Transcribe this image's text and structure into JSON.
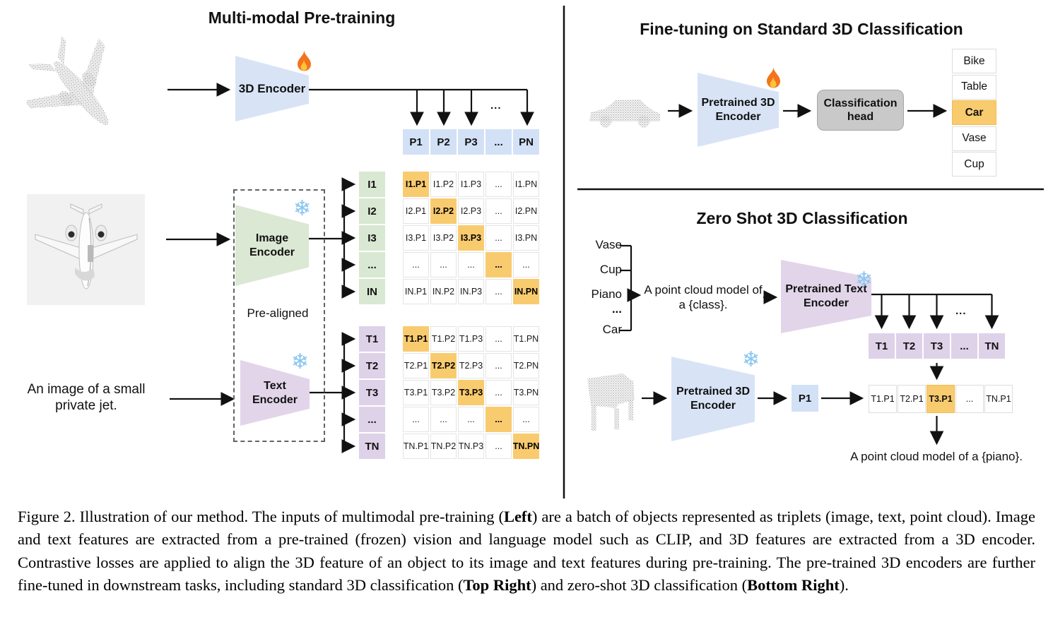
{
  "pretrain": {
    "title": "Multi-modal Pre-training",
    "pre_aligned": "Pre-aligned",
    "encoder_3d": "3D Encoder",
    "image_encoder": [
      "Image",
      "Encoder"
    ],
    "text_encoder": [
      "Text",
      "Encoder"
    ],
    "text_input_line1": "An image of a small",
    "text_input_line2": "private jet.",
    "ellipsis": "...",
    "p_row": [
      "P1",
      "P2",
      "P3",
      "...",
      "PN"
    ],
    "i_col": [
      "I1",
      "I2",
      "I3",
      "...",
      "IN"
    ],
    "t_col": [
      "T1",
      "T2",
      "T3",
      "...",
      "TN"
    ],
    "i_matrix": [
      [
        "I1.P1",
        "I1.P2",
        "I1.P3",
        "...",
        "I1.PN"
      ],
      [
        "I2.P1",
        "I2.P2",
        "I2.P3",
        "...",
        "I2.PN"
      ],
      [
        "I3.P1",
        "I3.P2",
        "I3.P3",
        "...",
        "I3.PN"
      ],
      [
        "...",
        "...",
        "...",
        "...",
        "..."
      ],
      [
        "IN.P1",
        "IN.P2",
        "IN.P3",
        "...",
        "IN.PN"
      ]
    ],
    "t_matrix": [
      [
        "T1.P1",
        "T1.P2",
        "T1.P3",
        "...",
        "T1.PN"
      ],
      [
        "T2.P1",
        "T2.P2",
        "T2.P3",
        "...",
        "T2.PN"
      ],
      [
        "T3.P1",
        "T3.P2",
        "T3.P3",
        "...",
        "T3.PN"
      ],
      [
        "...",
        "...",
        "...",
        "...",
        "..."
      ],
      [
        "TN.P1",
        "TN.P2",
        "TN.P3",
        "...",
        "TN.PN"
      ]
    ]
  },
  "finetune": {
    "title": "Fine-tuning on Standard 3D Classification",
    "encoder": [
      "Pretrained 3D",
      "Encoder"
    ],
    "head": [
      "Classification",
      "head"
    ],
    "classes": [
      "Bike",
      "Table",
      "Car",
      "Vase",
      "Cup"
    ],
    "predicted_class": "Car"
  },
  "zeroshot": {
    "title": "Zero Shot 3D Classification",
    "class_list": [
      "Vase",
      "Cup",
      "Piano",
      "...",
      "Car"
    ],
    "prompt_line1": "A point cloud model of",
    "prompt_line2": "a {class}.",
    "text_encoder": [
      "Pretrained Text",
      "Encoder"
    ],
    "encoder_3d": [
      "Pretrained 3D",
      "Encoder"
    ],
    "t_row": [
      "T1",
      "T2",
      "T3",
      "...",
      "TN"
    ],
    "p_cell": "P1",
    "tp_row": [
      "T1.P1",
      "T2.P1",
      "T3.P1",
      "...",
      "TN.P1"
    ],
    "result": "A point cloud model of a {piano}.",
    "ellipsis": "..."
  },
  "icons": {
    "snowflake": "❄"
  },
  "colors": {
    "highlight": "#f9cb6f",
    "blue_cell": "#d3e1f6",
    "green_cell": "#d9e8d2",
    "purple_cell": "#ded2e9",
    "blue_trapezoid": "#d8e4f6",
    "green_trapezoid": "#dbe8d3",
    "purple_trapezoid": "#e2d5ea",
    "head_gray": "#c9c9c9"
  },
  "caption": {
    "segments": [
      {
        "t": "Figure 2. Illustration of our method. The inputs of multimodal pre-training (",
        "b": false
      },
      {
        "t": "Left",
        "b": true
      },
      {
        "t": ") are a batch of objects represented as triplets (image, text, point cloud). Image and text features are extracted from a pre-trained (frozen) vision and language model such as CLIP, and 3D features are extracted from a 3D encoder. Contrastive losses are applied to align the 3D feature of an object to its image and text features during pre-training. The pre-trained 3D encoders are further fine-tuned in downstream tasks, including standard 3D classification (",
        "b": false
      },
      {
        "t": "Top Right",
        "b": true
      },
      {
        "t": ") and zero-shot 3D classification (",
        "b": false
      },
      {
        "t": "Bottom Right",
        "b": true
      },
      {
        "t": ").",
        "b": false
      }
    ]
  }
}
